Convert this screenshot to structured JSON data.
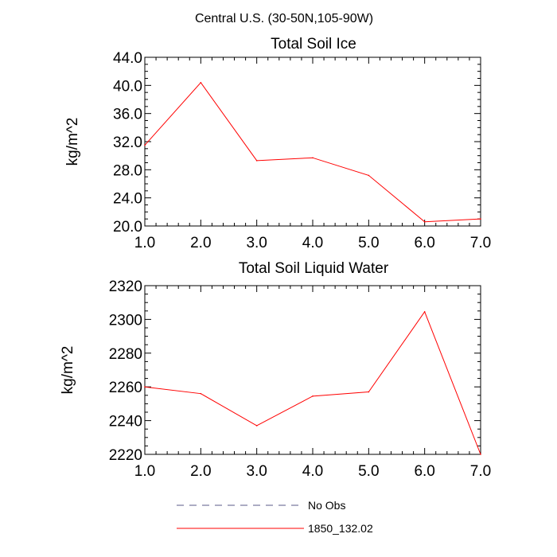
{
  "figure": {
    "title": "Central U.S. (30-50N,105-90W)"
  },
  "chart_data": [
    {
      "type": "line",
      "title": "Total Soil Ice",
      "xlabel": "",
      "ylabel": "kg/m^2",
      "xlim": [
        1.0,
        7.0
      ],
      "ylim": [
        20.0,
        44.0
      ],
      "x_ticks": [
        1,
        2,
        3,
        4,
        5,
        6,
        7
      ],
      "x_tick_labels": [
        "1.0",
        "2.0",
        "3.0",
        "4.0",
        "5.0",
        "6.0",
        "7.0"
      ],
      "y_ticks": [
        20,
        24,
        28,
        32,
        36,
        40,
        44
      ],
      "y_tick_labels": [
        "20.0",
        "24.0",
        "28.0",
        "32.0",
        "36.0",
        "40.0",
        "44.0"
      ],
      "x": [
        1,
        2,
        3,
        4,
        5,
        6,
        7
      ],
      "series": [
        {
          "name": "1850_132.02",
          "color": "#ff0000",
          "values": [
            31.5,
            40.4,
            29.3,
            29.7,
            27.2,
            20.6,
            21.0
          ]
        }
      ],
      "grid": false
    },
    {
      "type": "line",
      "title": "Total Soil Liquid Water",
      "xlabel": "",
      "ylabel": "kg/m^2",
      "xlim": [
        1.0,
        7.0
      ],
      "ylim": [
        2220,
        2320
      ],
      "x_ticks": [
        1,
        2,
        3,
        4,
        5,
        6,
        7
      ],
      "x_tick_labels": [
        "1.0",
        "2.0",
        "3.0",
        "4.0",
        "5.0",
        "6.0",
        "7.0"
      ],
      "y_ticks": [
        2220,
        2240,
        2260,
        2280,
        2300,
        2320
      ],
      "y_tick_labels": [
        "2220",
        "2240",
        "2260",
        "2280",
        "2300",
        "2320"
      ],
      "x": [
        1,
        2,
        3,
        4,
        5,
        6,
        7
      ],
      "series": [
        {
          "name": "1850_132.02",
          "color": "#ff0000",
          "values": [
            2260,
            2256,
            2237,
            2254.5,
            2257,
            2304.5,
            2220
          ]
        }
      ],
      "grid": false
    }
  ],
  "legend": {
    "placement": "bottom",
    "items": [
      {
        "label": "No Obs",
        "style": "dashed",
        "color": "#5a5a8a"
      },
      {
        "label": "1850_132.02",
        "style": "solid",
        "color": "#ff0000"
      }
    ]
  }
}
